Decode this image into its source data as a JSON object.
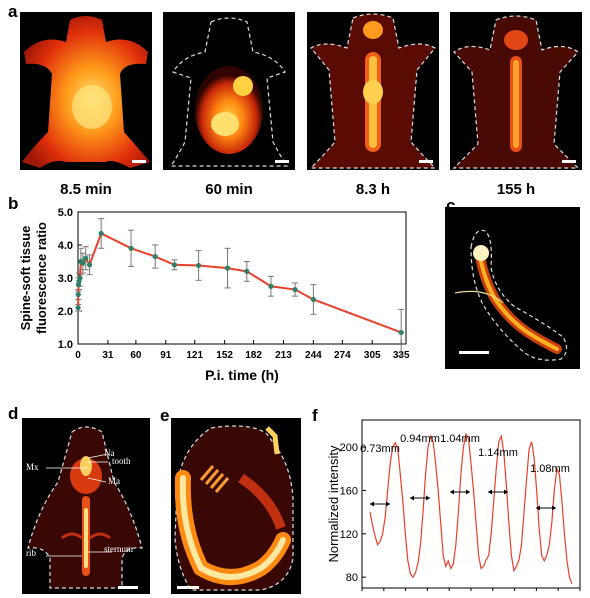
{
  "panel_a": {
    "letter": "a",
    "times": [
      "8.5 min",
      "60 min",
      "8.3 h",
      "155 h"
    ]
  },
  "panel_b": {
    "letter": "b"
  },
  "panel_c": {
    "letter": "c"
  },
  "panel_d": {
    "letter": "d",
    "labels": {
      "na": "Na",
      "tooth": "tooth",
      "mx": "Mx",
      "ma": "Ma",
      "rib": "rib",
      "sternum": "sternum"
    }
  },
  "panel_e": {
    "letter": "e"
  },
  "panel_f": {
    "letter": "f"
  },
  "chart_data": [
    {
      "type": "line",
      "xlabel": "P.i. time (h)",
      "ylabel": "Spine-soft tissue fluorescence ratio",
      "ylabel_lines": [
        "Spine-soft tissue",
        "fluorescence ratio"
      ],
      "xticks": [
        0,
        31,
        60,
        91,
        121,
        152,
        182,
        213,
        244,
        274,
        305,
        335
      ],
      "yticks": [
        "1.0",
        "2.0",
        "3.0",
        "4.0",
        "5.0"
      ],
      "xlim": [
        0,
        340
      ],
      "ylim": [
        1.0,
        5.0
      ],
      "color": "#e8402a",
      "marker_color": "#2f7f6a",
      "x": [
        0.1,
        0.25,
        0.5,
        1,
        2,
        3,
        5,
        8,
        12,
        24,
        55,
        80,
        100,
        125,
        155,
        175,
        200,
        225,
        244,
        335
      ],
      "y": [
        2.1,
        2.5,
        2.8,
        2.9,
        3.0,
        3.5,
        3.45,
        3.6,
        3.4,
        4.35,
        3.9,
        3.65,
        3.4,
        3.38,
        3.3,
        3.2,
        2.75,
        2.65,
        2.35,
        1.35
      ],
      "err": [
        0.1,
        0.15,
        0.2,
        0.25,
        0.25,
        0.4,
        0.3,
        0.35,
        0.3,
        0.45,
        0.55,
        0.35,
        0.15,
        0.45,
        0.6,
        0.3,
        0.3,
        0.2,
        0.45,
        0.7
      ]
    },
    {
      "type": "line",
      "ylabel": "Normalized intensity",
      "yticks": [
        "80",
        "120",
        "160",
        "200"
      ],
      "ylim": [
        70,
        225
      ],
      "color": "#e8402a",
      "y": [
        140,
        128,
        118,
        110,
        113,
        120,
        135,
        160,
        185,
        200,
        204,
        198,
        175,
        150,
        120,
        95,
        83,
        80,
        84,
        93,
        110,
        140,
        175,
        200,
        210,
        205,
        185,
        160,
        130,
        100,
        90,
        95,
        88,
        92,
        110,
        140,
        175,
        200,
        212,
        208,
        185,
        160,
        130,
        100,
        88,
        90,
        96,
        100,
        120,
        150,
        180,
        205,
        210,
        195,
        165,
        130,
        100,
        86,
        90,
        96,
        110,
        140,
        170,
        198,
        205,
        190,
        160,
        125,
        100,
        95,
        100,
        110,
        130,
        160,
        180,
        175,
        150,
        120,
        95,
        80,
        74
      ],
      "annotations": [
        "0.73mm",
        "0.94mm",
        "1.04mm",
        "1.14mm",
        "1.08mm"
      ]
    }
  ]
}
